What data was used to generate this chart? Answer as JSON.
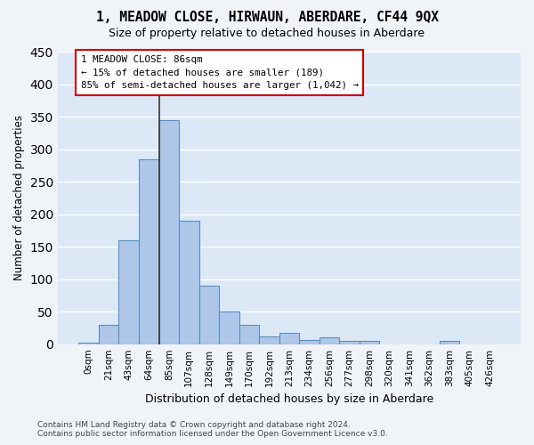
{
  "title": "1, MEADOW CLOSE, HIRWAUN, ABERDARE, CF44 9QX",
  "subtitle": "Size of property relative to detached houses in Aberdare",
  "xlabel": "Distribution of detached houses by size in Aberdare",
  "ylabel": "Number of detached properties",
  "bin_labels": [
    "0sqm",
    "21sqm",
    "43sqm",
    "64sqm",
    "85sqm",
    "107sqm",
    "128sqm",
    "149sqm",
    "170sqm",
    "192sqm",
    "213sqm",
    "234sqm",
    "256sqm",
    "277sqm",
    "298sqm",
    "320sqm",
    "341sqm",
    "362sqm",
    "383sqm",
    "405sqm",
    "426sqm"
  ],
  "bar_values": [
    2,
    30,
    160,
    285,
    345,
    190,
    90,
    50,
    30,
    12,
    18,
    7,
    10,
    5,
    5,
    0,
    0,
    0,
    5,
    0,
    0
  ],
  "bar_color": "#aec6e8",
  "bar_edge_color": "#5a8fc0",
  "vline_color": "#333333",
  "annotation_text": "1 MEADOW CLOSE: 86sqm\n← 15% of detached houses are smaller (189)\n85% of semi-detached houses are larger (1,042) →",
  "annotation_box_color": "#ffffff",
  "annotation_box_edge": "#cc0000",
  "bg_color": "#dce8f5",
  "grid_color": "#ffffff",
  "footer_text": "Contains HM Land Registry data © Crown copyright and database right 2024.\nContains public sector information licensed under the Open Government Licence v3.0.",
  "ylim": [
    0,
    450
  ],
  "yticks": [
    0,
    50,
    100,
    150,
    200,
    250,
    300,
    350,
    400,
    450
  ],
  "fig_bg_color": "#f0f4f8"
}
